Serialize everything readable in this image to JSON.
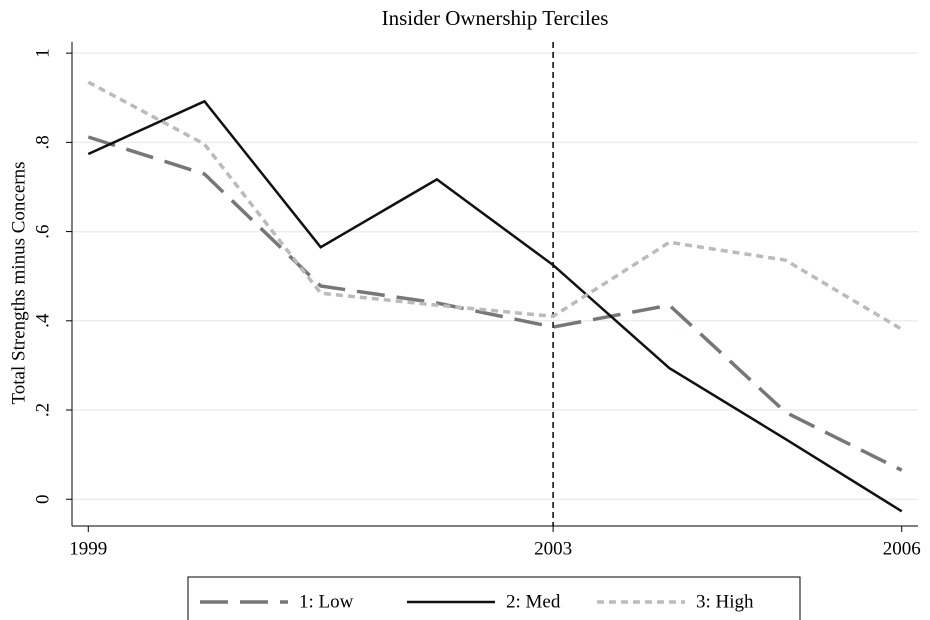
{
  "chart_data": {
    "type": "line",
    "title": "Insider Ownership Terciles",
    "y_label": "Total Strengths minus Concerns",
    "x": [
      1999,
      2000,
      2001,
      2002,
      2003,
      2004,
      2005,
      2006
    ],
    "series": [
      {
        "name": "1: Low",
        "color": "#777777",
        "style": "dashed",
        "values": [
          0.812,
          0.729,
          0.478,
          0.44,
          0.386,
          0.435,
          0.195,
          0.065
        ]
      },
      {
        "name": "2: Med",
        "color": "#111111",
        "style": "solid",
        "values": [
          0.774,
          0.892,
          0.565,
          0.717,
          0.525,
          0.294,
          0.135,
          -0.027
        ]
      },
      {
        "name": "3: High",
        "color": "#bbbbbb",
        "style": "dotted",
        "values": [
          0.935,
          0.796,
          0.462,
          0.435,
          0.41,
          0.576,
          0.536,
          0.381
        ]
      }
    ],
    "vline": 2003,
    "xlim": [
      1998.86,
      2006.14
    ],
    "xticks": [
      1999,
      2003,
      2006
    ],
    "ylim": [
      -0.06,
      1.025
    ],
    "yticks": [
      0,
      {
        "value": 0.2,
        "label": ".2"
      },
      {
        "value": 0.4,
        "label": ".4"
      },
      {
        "value": 0.6,
        "label": ".6"
      },
      {
        "value": 0.8,
        "label": ".8"
      },
      1
    ],
    "grid": true,
    "legend": "bottom"
  }
}
